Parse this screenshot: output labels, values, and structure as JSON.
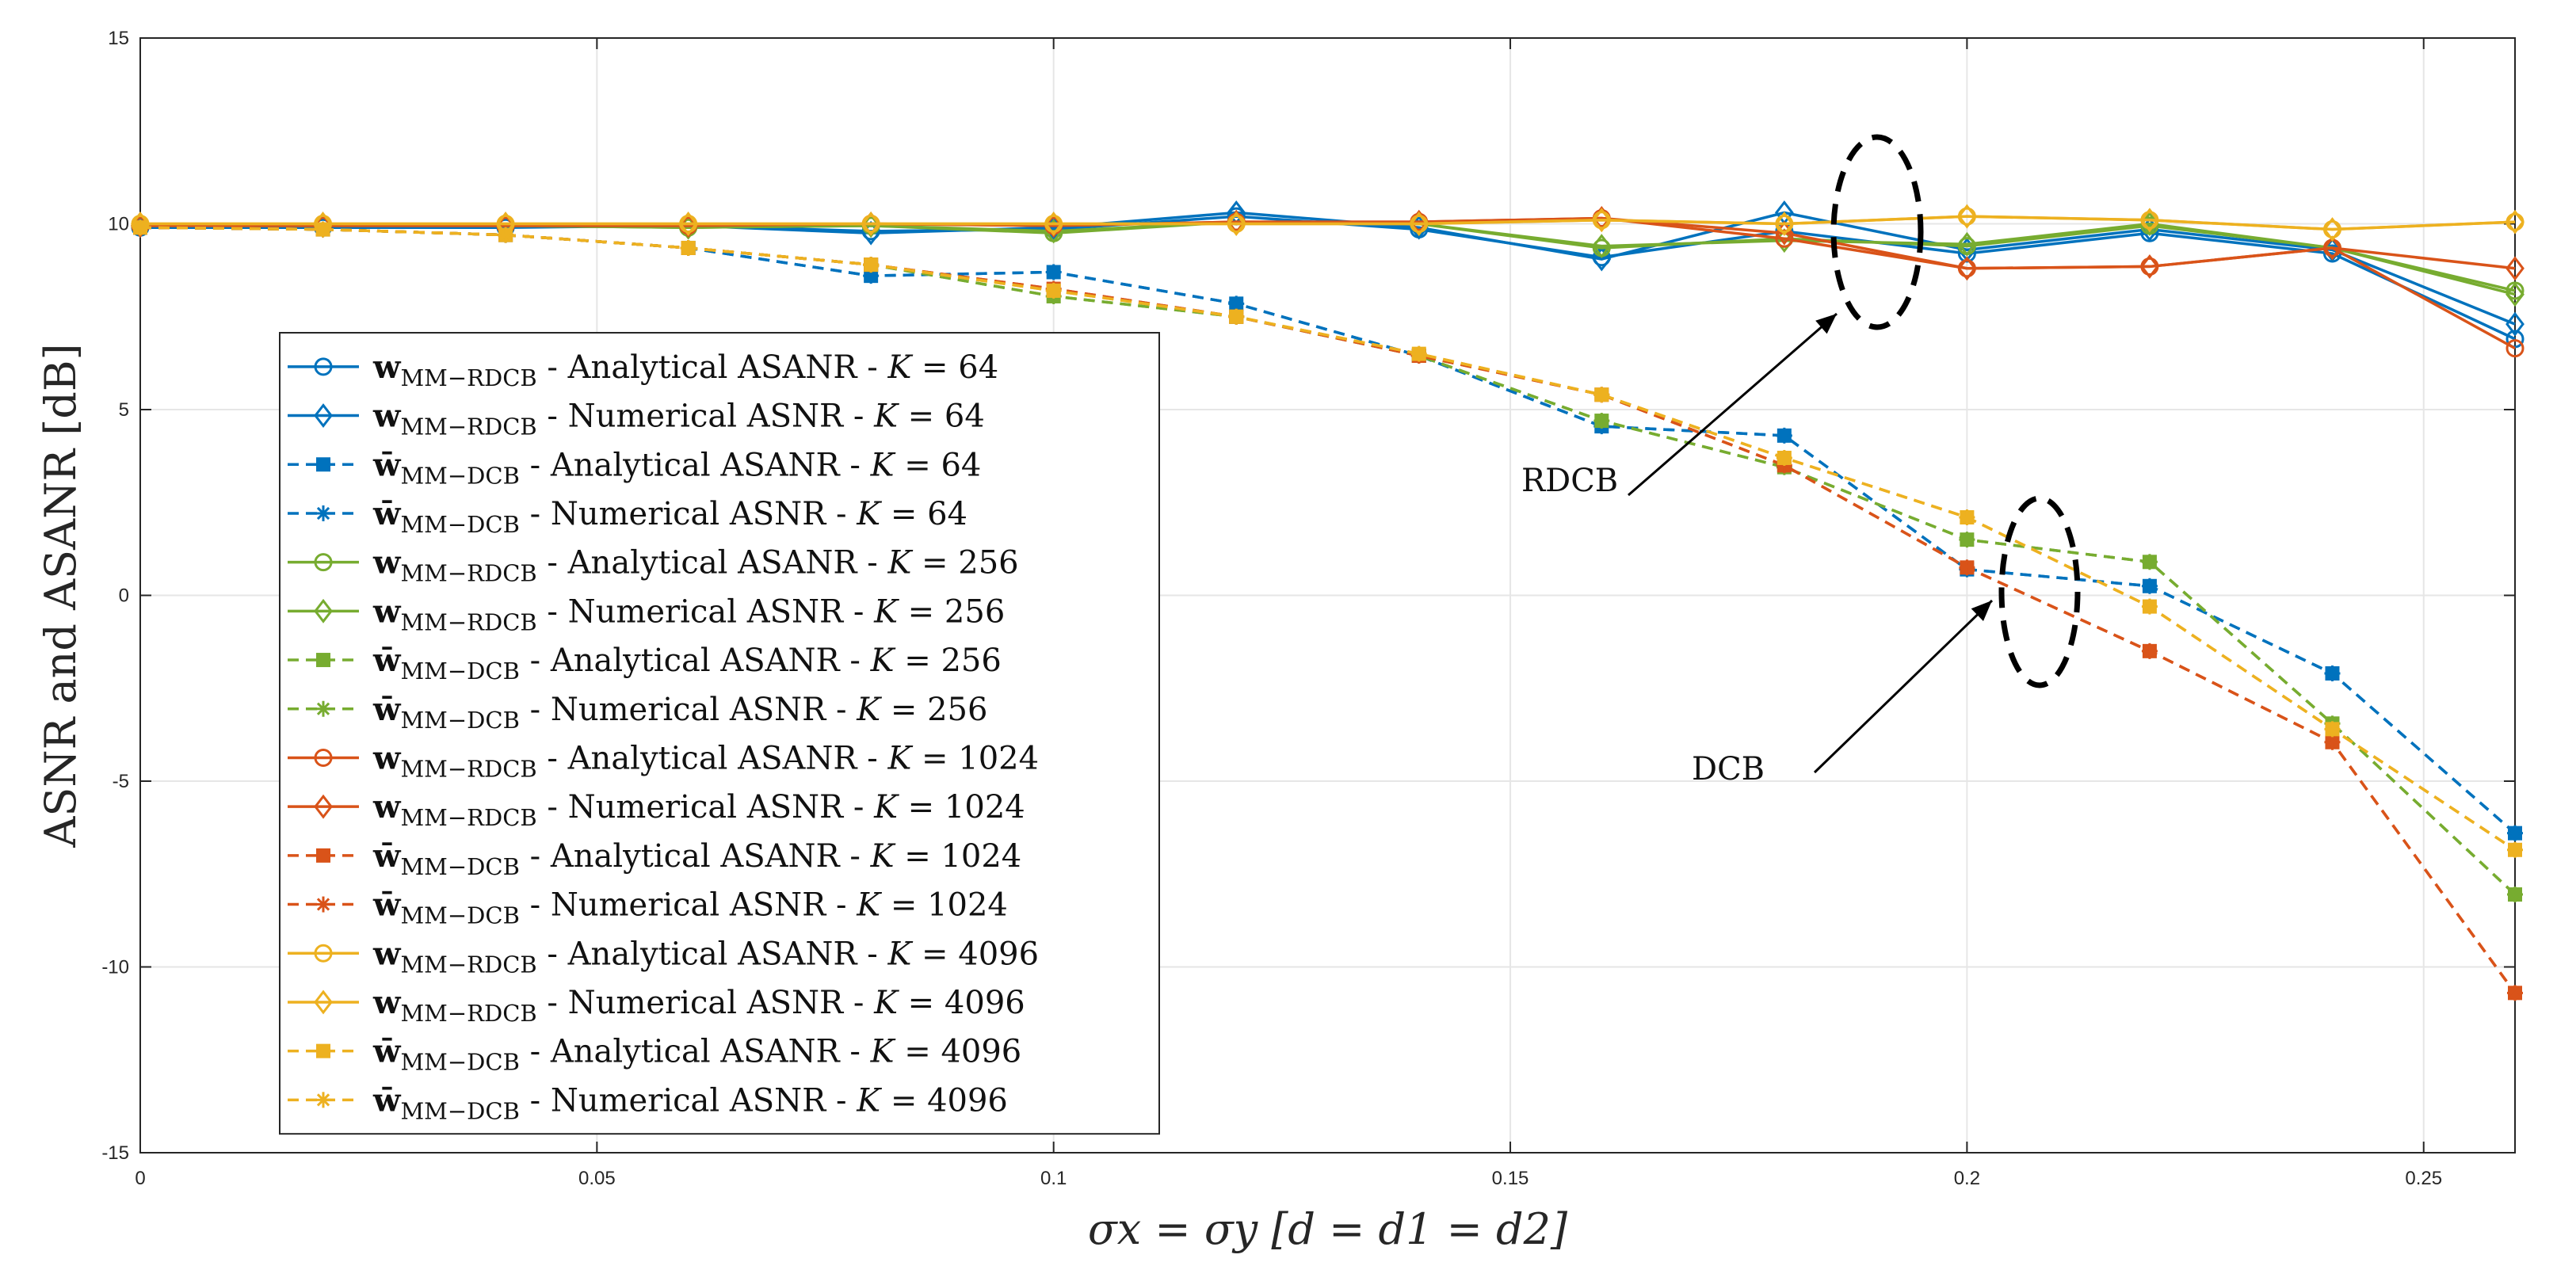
{
  "chart_data": {
    "type": "line",
    "title": "",
    "xlabel": "σx = σy [d = d1 = d2]",
    "ylabel": "ASNR and ASANR [dB]",
    "xlim": [
      0,
      0.26
    ],
    "ylim": [
      -15,
      15
    ],
    "xticks": [
      0,
      0.05,
      0.1,
      0.15,
      0.2,
      0.25
    ],
    "yticks": [
      -15,
      -10,
      -5,
      0,
      5,
      10,
      15
    ],
    "xtick_labels": [
      "0",
      "0.05",
      "0.1",
      "0.15",
      "0.2",
      "0.25"
    ],
    "ytick_labels": [
      "-15",
      "-10",
      "-5",
      "0",
      "5",
      "10",
      "15"
    ],
    "grid": true,
    "legend_position": "center-left",
    "colors": {
      "K64": "#0072BD",
      "K256": "#77AC30",
      "K1024": "#D95319",
      "K4096": "#EDB120"
    },
    "x": [
      0,
      0.02,
      0.04,
      0.06,
      0.08,
      0.1,
      0.12,
      0.14,
      0.16,
      0.18,
      0.2,
      0.22,
      0.24,
      0.26
    ],
    "series": [
      {
        "name": "w_MM-RDCB - Analytical ASANR - K = 64",
        "vec": "w",
        "sub": "MM−RDCB",
        "desc": "Analytical ASANR",
        "k": "64",
        "color": "#0072BD",
        "dash": false,
        "marker": "circle",
        "values": [
          9.9,
          9.9,
          9.9,
          9.95,
          9.8,
          9.85,
          10.2,
          9.85,
          9.1,
          9.8,
          9.2,
          9.75,
          9.2,
          6.9
        ]
      },
      {
        "name": "w_MM-RDCB - Numerical ASNR - K = 64",
        "vec": "w",
        "sub": "MM−RDCB",
        "desc": "Numerical ASNR",
        "k": "64",
        "color": "#0072BD",
        "dash": false,
        "marker": "diamond",
        "values": [
          9.95,
          9.95,
          9.95,
          9.95,
          9.75,
          9.9,
          10.3,
          9.9,
          9.05,
          10.3,
          9.3,
          9.85,
          9.3,
          7.3
        ]
      },
      {
        "name": "w̄_MM-DCB - Analytical ASANR - K = 64",
        "vec": "w̄",
        "sub": "MM−DCB",
        "desc": "Analytical ASANR",
        "k": "64",
        "color": "#0072BD",
        "dash": true,
        "marker": "square",
        "values": [
          9.9,
          9.85,
          9.7,
          9.35,
          8.6,
          8.7,
          7.85,
          6.45,
          4.55,
          4.3,
          0.7,
          0.25,
          -2.1,
          -6.4
        ]
      },
      {
        "name": "w̄_MM-DCB - Numerical ASNR - K = 64",
        "vec": "w̄",
        "sub": "MM−DCB",
        "desc": "Numerical ASNR",
        "k": "64",
        "color": "#0072BD",
        "dash": true,
        "marker": "asterisk",
        "values": [
          9.9,
          9.85,
          9.7,
          9.35,
          8.6,
          8.7,
          7.85,
          6.45,
          4.55,
          4.3,
          0.7,
          0.25,
          -2.1,
          -6.4
        ]
      },
      {
        "name": "w_MM-RDCB - Analytical ASANR - K = 256",
        "vec": "w",
        "sub": "MM−RDCB",
        "desc": "Analytical ASANR",
        "k": "256",
        "color": "#77AC30",
        "dash": false,
        "marker": "circle",
        "values": [
          9.95,
          9.95,
          9.95,
          9.9,
          9.95,
          9.75,
          10.05,
          10.0,
          9.35,
          9.6,
          9.4,
          9.95,
          9.35,
          8.2
        ]
      },
      {
        "name": "w_MM-RDCB - Numerical ASNR - K = 256",
        "vec": "w",
        "sub": "MM−RDCB",
        "desc": "Numerical ASNR",
        "k": "256",
        "color": "#77AC30",
        "dash": false,
        "marker": "diamond",
        "values": [
          9.95,
          9.95,
          9.95,
          9.9,
          9.95,
          9.8,
          10.05,
          10.0,
          9.4,
          9.55,
          9.45,
          10.0,
          9.35,
          8.1
        ]
      },
      {
        "name": "w̄_MM-DCB - Analytical ASANR - K = 256",
        "vec": "w̄",
        "sub": "MM−DCB",
        "desc": "Analytical ASANR",
        "k": "256",
        "color": "#77AC30",
        "dash": true,
        "marker": "square",
        "values": [
          9.9,
          9.85,
          9.7,
          9.35,
          8.9,
          8.05,
          7.5,
          6.45,
          4.7,
          3.45,
          1.5,
          0.9,
          -3.45,
          -8.05
        ]
      },
      {
        "name": "w̄_MM-DCB - Numerical ASNR - K = 256",
        "vec": "w̄",
        "sub": "MM−DCB",
        "desc": "Numerical ASNR",
        "k": "256",
        "color": "#77AC30",
        "dash": true,
        "marker": "asterisk",
        "values": [
          9.9,
          9.85,
          9.7,
          9.35,
          8.9,
          8.05,
          7.5,
          6.45,
          4.7,
          3.45,
          1.5,
          0.9,
          -3.45,
          -8.05
        ]
      },
      {
        "name": "w_MM-RDCB - Analytical ASANR - K = 1024",
        "vec": "w",
        "sub": "MM−RDCB",
        "desc": "Analytical ASANR",
        "k": "1024",
        "color": "#D95319",
        "dash": false,
        "marker": "circle",
        "values": [
          9.95,
          9.95,
          9.95,
          9.95,
          10.0,
          9.95,
          10.05,
          10.05,
          10.15,
          9.6,
          8.8,
          8.85,
          9.35,
          6.65
        ]
      },
      {
        "name": "w_MM-RDCB - Numerical ASNR - K = 1024",
        "vec": "w",
        "sub": "MM−RDCB",
        "desc": "Numerical ASNR",
        "k": "1024",
        "color": "#D95319",
        "dash": false,
        "marker": "diamond",
        "values": [
          9.95,
          9.95,
          9.95,
          9.95,
          10.0,
          9.95,
          10.05,
          10.05,
          10.15,
          9.75,
          8.8,
          8.85,
          9.35,
          8.8
        ]
      },
      {
        "name": "w̄_MM-DCB - Analytical ASANR - K = 1024",
        "vec": "w̄",
        "sub": "MM−DCB",
        "desc": "Analytical ASANR",
        "k": "1024",
        "color": "#D95319",
        "dash": true,
        "marker": "square",
        "values": [
          9.9,
          9.85,
          9.7,
          9.35,
          8.9,
          8.25,
          7.5,
          6.45,
          5.4,
          3.5,
          0.75,
          -1.5,
          -3.95,
          -10.7
        ]
      },
      {
        "name": "w̄_MM-DCB - Numerical ASNR - K = 1024",
        "vec": "w̄",
        "sub": "MM−DCB",
        "desc": "Numerical ASNR",
        "k": "1024",
        "color": "#D95319",
        "dash": true,
        "marker": "asterisk",
        "values": [
          9.9,
          9.85,
          9.7,
          9.35,
          8.9,
          8.25,
          7.5,
          6.45,
          5.4,
          3.5,
          0.75,
          -1.5,
          -3.95,
          -10.7
        ]
      },
      {
        "name": "w_MM-RDCB - Analytical ASANR - K = 4096",
        "vec": "w",
        "sub": "MM−RDCB",
        "desc": "Analytical ASANR",
        "k": "4096",
        "color": "#EDB120",
        "dash": false,
        "marker": "circle",
        "values": [
          10.0,
          10.0,
          10.0,
          10.0,
          10.0,
          10.0,
          10.0,
          10.0,
          10.1,
          10.0,
          10.2,
          10.1,
          9.85,
          10.05
        ]
      },
      {
        "name": "w_MM-RDCB - Numerical ASNR - K = 4096",
        "vec": "w",
        "sub": "MM−RDCB",
        "desc": "Numerical ASNR",
        "k": "4096",
        "color": "#EDB120",
        "dash": false,
        "marker": "diamond",
        "values": [
          10.0,
          10.0,
          10.0,
          10.0,
          10.0,
          10.0,
          10.0,
          10.0,
          10.1,
          10.0,
          10.2,
          10.1,
          9.85,
          10.05
        ]
      },
      {
        "name": "w̄_MM-DCB - Analytical ASANR - K = 4096",
        "vec": "w̄",
        "sub": "MM−DCB",
        "desc": "Analytical ASANR",
        "k": "4096",
        "color": "#EDB120",
        "dash": true,
        "marker": "square",
        "values": [
          9.9,
          9.85,
          9.7,
          9.35,
          8.9,
          8.2,
          7.5,
          6.5,
          5.4,
          3.7,
          2.1,
          -0.3,
          -3.6,
          -6.85
        ]
      },
      {
        "name": "w̄_MM-DCB - Numerical ASNR - K = 4096",
        "vec": "w̄",
        "sub": "MM−DCB",
        "desc": "Numerical ASNR",
        "k": "4096",
        "color": "#EDB120",
        "dash": true,
        "marker": "asterisk",
        "values": [
          9.9,
          9.85,
          9.7,
          9.35,
          8.9,
          8.2,
          7.5,
          6.5,
          5.4,
          3.7,
          2.1,
          -0.3,
          -3.6,
          -6.85
        ]
      }
    ],
    "annotations": [
      {
        "text": "RDCB",
        "ellipse_center": [
          0.19,
          9.7
        ]
      },
      {
        "text": "DCB",
        "ellipse_center": [
          0.208,
          0.7
        ]
      }
    ]
  }
}
